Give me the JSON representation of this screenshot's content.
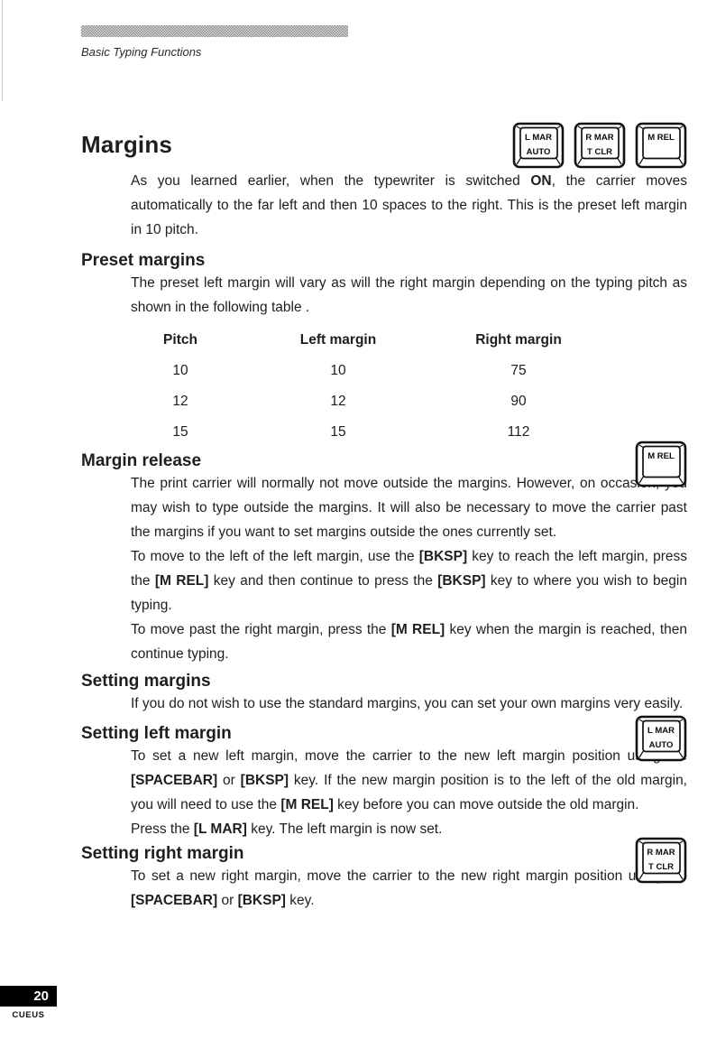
{
  "header": {
    "running_head": "Basic Typing Functions"
  },
  "title": {
    "text": "Margins"
  },
  "keys": {
    "title_row": [
      {
        "lines": [
          "L MAR",
          "AUTO"
        ]
      },
      {
        "lines": [
          "R MAR",
          "T CLR"
        ]
      },
      {
        "lines": [
          "M REL"
        ]
      }
    ],
    "margin_release": {
      "lines": [
        "M REL"
      ]
    },
    "setting_left": {
      "lines": [
        "L MAR",
        "AUTO"
      ]
    },
    "setting_right": {
      "lines": [
        "R MAR",
        "T CLR"
      ]
    }
  },
  "sections": {
    "intro": {
      "paragraph": [
        "As you learned earlier, when the typewriter is switched ",
        {
          "b": "ON"
        },
        ", the carrier moves automatically to the far left and then 10 spaces to the right. This is the preset left margin in 10 pitch."
      ]
    },
    "preset": {
      "heading": "Preset margins",
      "body": [
        "The preset left margin will vary as will the right margin depending on the typing pitch as shown in the following table ."
      ]
    },
    "margin_release": {
      "heading": "Margin release",
      "p1": [
        "The print carrier will normally not move outside the margins. However, on occasion, you may wish to type outside the margins. It will also be necessary to move the carrier past the margins if you want to set margins outside the ones currently set."
      ],
      "p2": [
        "To move to the left of the left margin, use the ",
        {
          "b": "[BKSP]"
        },
        " key to reach the left margin, press the ",
        {
          "b": "[M REL]"
        },
        " key and then continue to press the ",
        {
          "b": "[BKSP]"
        },
        " key to where you wish to begin typing."
      ],
      "p3": [
        "To move past the right margin, press the ",
        {
          "b": "[M REL]"
        },
        " key when the margin is reached, then continue typing."
      ]
    },
    "setting_margins": {
      "heading": "Setting margins",
      "body": [
        "If you do not wish to use the standard margins, you can set your own margins very easily."
      ]
    },
    "setting_left": {
      "heading": "Setting left margin",
      "p1": [
        "To set a new left margin, move the carrier to the new left margin position using the ",
        {
          "b": "[SPACEBAR]"
        },
        " or ",
        {
          "b": "[BKSP]"
        },
        " key. If the new margin position is to the left of the old margin, you will need to use the ",
        {
          "b": "[M REL]"
        },
        " key before you can move outside the old margin."
      ],
      "p2": [
        "Press the ",
        {
          "b": "[L MAR]"
        },
        " key. The left margin is now set."
      ]
    },
    "setting_right": {
      "heading": "Setting right margin",
      "p1": [
        "To set a new right margin, move the carrier to the new right margin position using the ",
        {
          "b": "[SPACEBAR]"
        },
        " or ",
        {
          "b": "[BKSP]"
        },
        " key."
      ]
    }
  },
  "table": {
    "headers": [
      "Pitch",
      "Left margin",
      "Right margin"
    ],
    "rows": [
      [
        "10",
        "10",
        "75"
      ],
      [
        "12",
        "12",
        "90"
      ],
      [
        "15",
        "15",
        "112"
      ]
    ]
  },
  "footer": {
    "page_number": "20",
    "imprint": "CUEUS"
  }
}
